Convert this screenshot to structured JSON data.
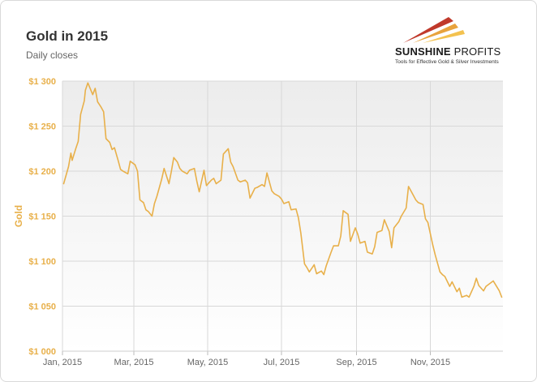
{
  "header": {
    "title": "Gold in 2015",
    "subtitle": "Daily closes"
  },
  "logo": {
    "name_bold": "SUNSHINE",
    "name_light": " PROFITS",
    "tagline": "Tools for Effective Gold & Silver Investments",
    "colors": [
      "#c0392b",
      "#e8a33d",
      "#f3c24f"
    ]
  },
  "colors": {
    "line": "#e8b04a",
    "axis_text": "#e8b04a",
    "date_text": "#666666",
    "plot_top": "#ececec",
    "plot_bottom": "#ffffff",
    "grid": "#d8d8d8"
  },
  "chart_data": {
    "type": "line",
    "title": "Gold in 2015",
    "subtitle": "Daily closes",
    "ylabel": "Gold",
    "xlabel": "",
    "xlim": [
      "2015-01-01",
      "2015-12-31"
    ],
    "ylim": [
      1000,
      1300
    ],
    "yticks": [
      1000,
      1050,
      1100,
      1150,
      1200,
      1250,
      1300
    ],
    "ytick_labels": [
      "$1 000",
      "$1 050",
      "$1 100",
      "$1 150",
      "$1 200",
      "$1 250",
      "$1 300"
    ],
    "xticks": [
      "2015-01-01",
      "2015-03-01",
      "2015-05-01",
      "2015-07-01",
      "2015-09-01",
      "2015-11-01"
    ],
    "xtick_labels": [
      "Jan, 2015",
      "Mar, 2015",
      "May, 2015",
      "Jul, 2015",
      "Sep, 2015",
      "Nov, 2015"
    ],
    "grid": true,
    "x": [
      "2015-01-02",
      "2015-01-06",
      "2015-01-08",
      "2015-01-09",
      "2015-01-12",
      "2015-01-14",
      "2015-01-16",
      "2015-01-19",
      "2015-01-20",
      "2015-01-22",
      "2015-01-26",
      "2015-01-28",
      "2015-01-30",
      "2015-02-02",
      "2015-02-04",
      "2015-02-06",
      "2015-02-09",
      "2015-02-11",
      "2015-02-13",
      "2015-02-16",
      "2015-02-18",
      "2015-02-20",
      "2015-02-24",
      "2015-02-26",
      "2015-03-02",
      "2015-03-04",
      "2015-03-06",
      "2015-03-09",
      "2015-03-11",
      "2015-03-13",
      "2015-03-16",
      "2015-03-18",
      "2015-03-20",
      "2015-03-24",
      "2015-03-26",
      "2015-03-30",
      "2015-04-01",
      "2015-04-03",
      "2015-04-06",
      "2015-04-08",
      "2015-04-10",
      "2015-04-14",
      "2015-04-16",
      "2015-04-20",
      "2015-04-22",
      "2015-04-24",
      "2015-04-28",
      "2015-04-30",
      "2015-05-04",
      "2015-05-06",
      "2015-05-08",
      "2015-05-12",
      "2015-05-14",
      "2015-05-18",
      "2015-05-20",
      "2015-05-22",
      "2015-05-26",
      "2015-05-28",
      "2015-06-01",
      "2015-06-03",
      "2015-06-05",
      "2015-06-09",
      "2015-06-11",
      "2015-06-15",
      "2015-06-17",
      "2015-06-19",
      "2015-06-23",
      "2015-06-25",
      "2015-06-29",
      "2015-07-01",
      "2015-07-03",
      "2015-07-07",
      "2015-07-09",
      "2015-07-13",
      "2015-07-15",
      "2015-07-17",
      "2015-07-20",
      "2015-07-22",
      "2015-07-24",
      "2015-07-28",
      "2015-07-30",
      "2015-08-03",
      "2015-08-05",
      "2015-08-07",
      "2015-08-11",
      "2015-08-13",
      "2015-08-17",
      "2015-08-19",
      "2015-08-21",
      "2015-08-25",
      "2015-08-27",
      "2015-08-31",
      "2015-09-02",
      "2015-09-04",
      "2015-09-08",
      "2015-09-10",
      "2015-09-14",
      "2015-09-16",
      "2015-09-18",
      "2015-09-22",
      "2015-09-24",
      "2015-09-28",
      "2015-09-30",
      "2015-10-02",
      "2015-10-06",
      "2015-10-08",
      "2015-10-12",
      "2015-10-14",
      "2015-10-16",
      "2015-10-20",
      "2015-10-22",
      "2015-10-26",
      "2015-10-28",
      "2015-10-30",
      "2015-11-03",
      "2015-11-05",
      "2015-11-09",
      "2015-11-11",
      "2015-11-13",
      "2015-11-17",
      "2015-11-19",
      "2015-11-23",
      "2015-11-25",
      "2015-11-27",
      "2015-12-01",
      "2015-12-03",
      "2015-12-07",
      "2015-12-09",
      "2015-12-11",
      "2015-12-15",
      "2015-12-17",
      "2015-12-21",
      "2015-12-23",
      "2015-12-28",
      "2015-12-30"
    ],
    "series": [
      {
        "values": [
          1186,
          1205,
          1220,
          1212,
          1225,
          1233,
          1263,
          1278,
          1290,
          1298,
          1285,
          1292,
          1277,
          1271,
          1266,
          1236,
          1232,
          1224,
          1226,
          1212,
          1202,
          1200,
          1197,
          1211,
          1207,
          1200,
          1168,
          1165,
          1157,
          1155,
          1150,
          1164,
          1172,
          1191,
          1203,
          1186,
          1200,
          1215,
          1210,
          1203,
          1200,
          1197,
          1201,
          1203,
          1189,
          1177,
          1201,
          1184,
          1190,
          1192,
          1186,
          1190,
          1219,
          1225,
          1210,
          1205,
          1190,
          1188,
          1190,
          1187,
          1170,
          1181,
          1182,
          1185,
          1183,
          1198,
          1178,
          1175,
          1172,
          1169,
          1164,
          1166,
          1157,
          1158,
          1148,
          1131,
          1097,
          1093,
          1088,
          1096,
          1086,
          1089,
          1085,
          1095,
          1110,
          1117,
          1117,
          1128,
          1156,
          1152,
          1122,
          1137,
          1130,
          1120,
          1122,
          1110,
          1108,
          1116,
          1132,
          1134,
          1146,
          1133,
          1115,
          1137,
          1144,
          1150,
          1159,
          1183,
          1178,
          1168,
          1165,
          1163,
          1147,
          1143,
          1118,
          1107,
          1088,
          1085,
          1083,
          1072,
          1077,
          1066,
          1070,
          1060,
          1062,
          1060,
          1072,
          1081,
          1073,
          1067,
          1072,
          1076,
          1078,
          1067,
          1060
        ]
      }
    ]
  }
}
